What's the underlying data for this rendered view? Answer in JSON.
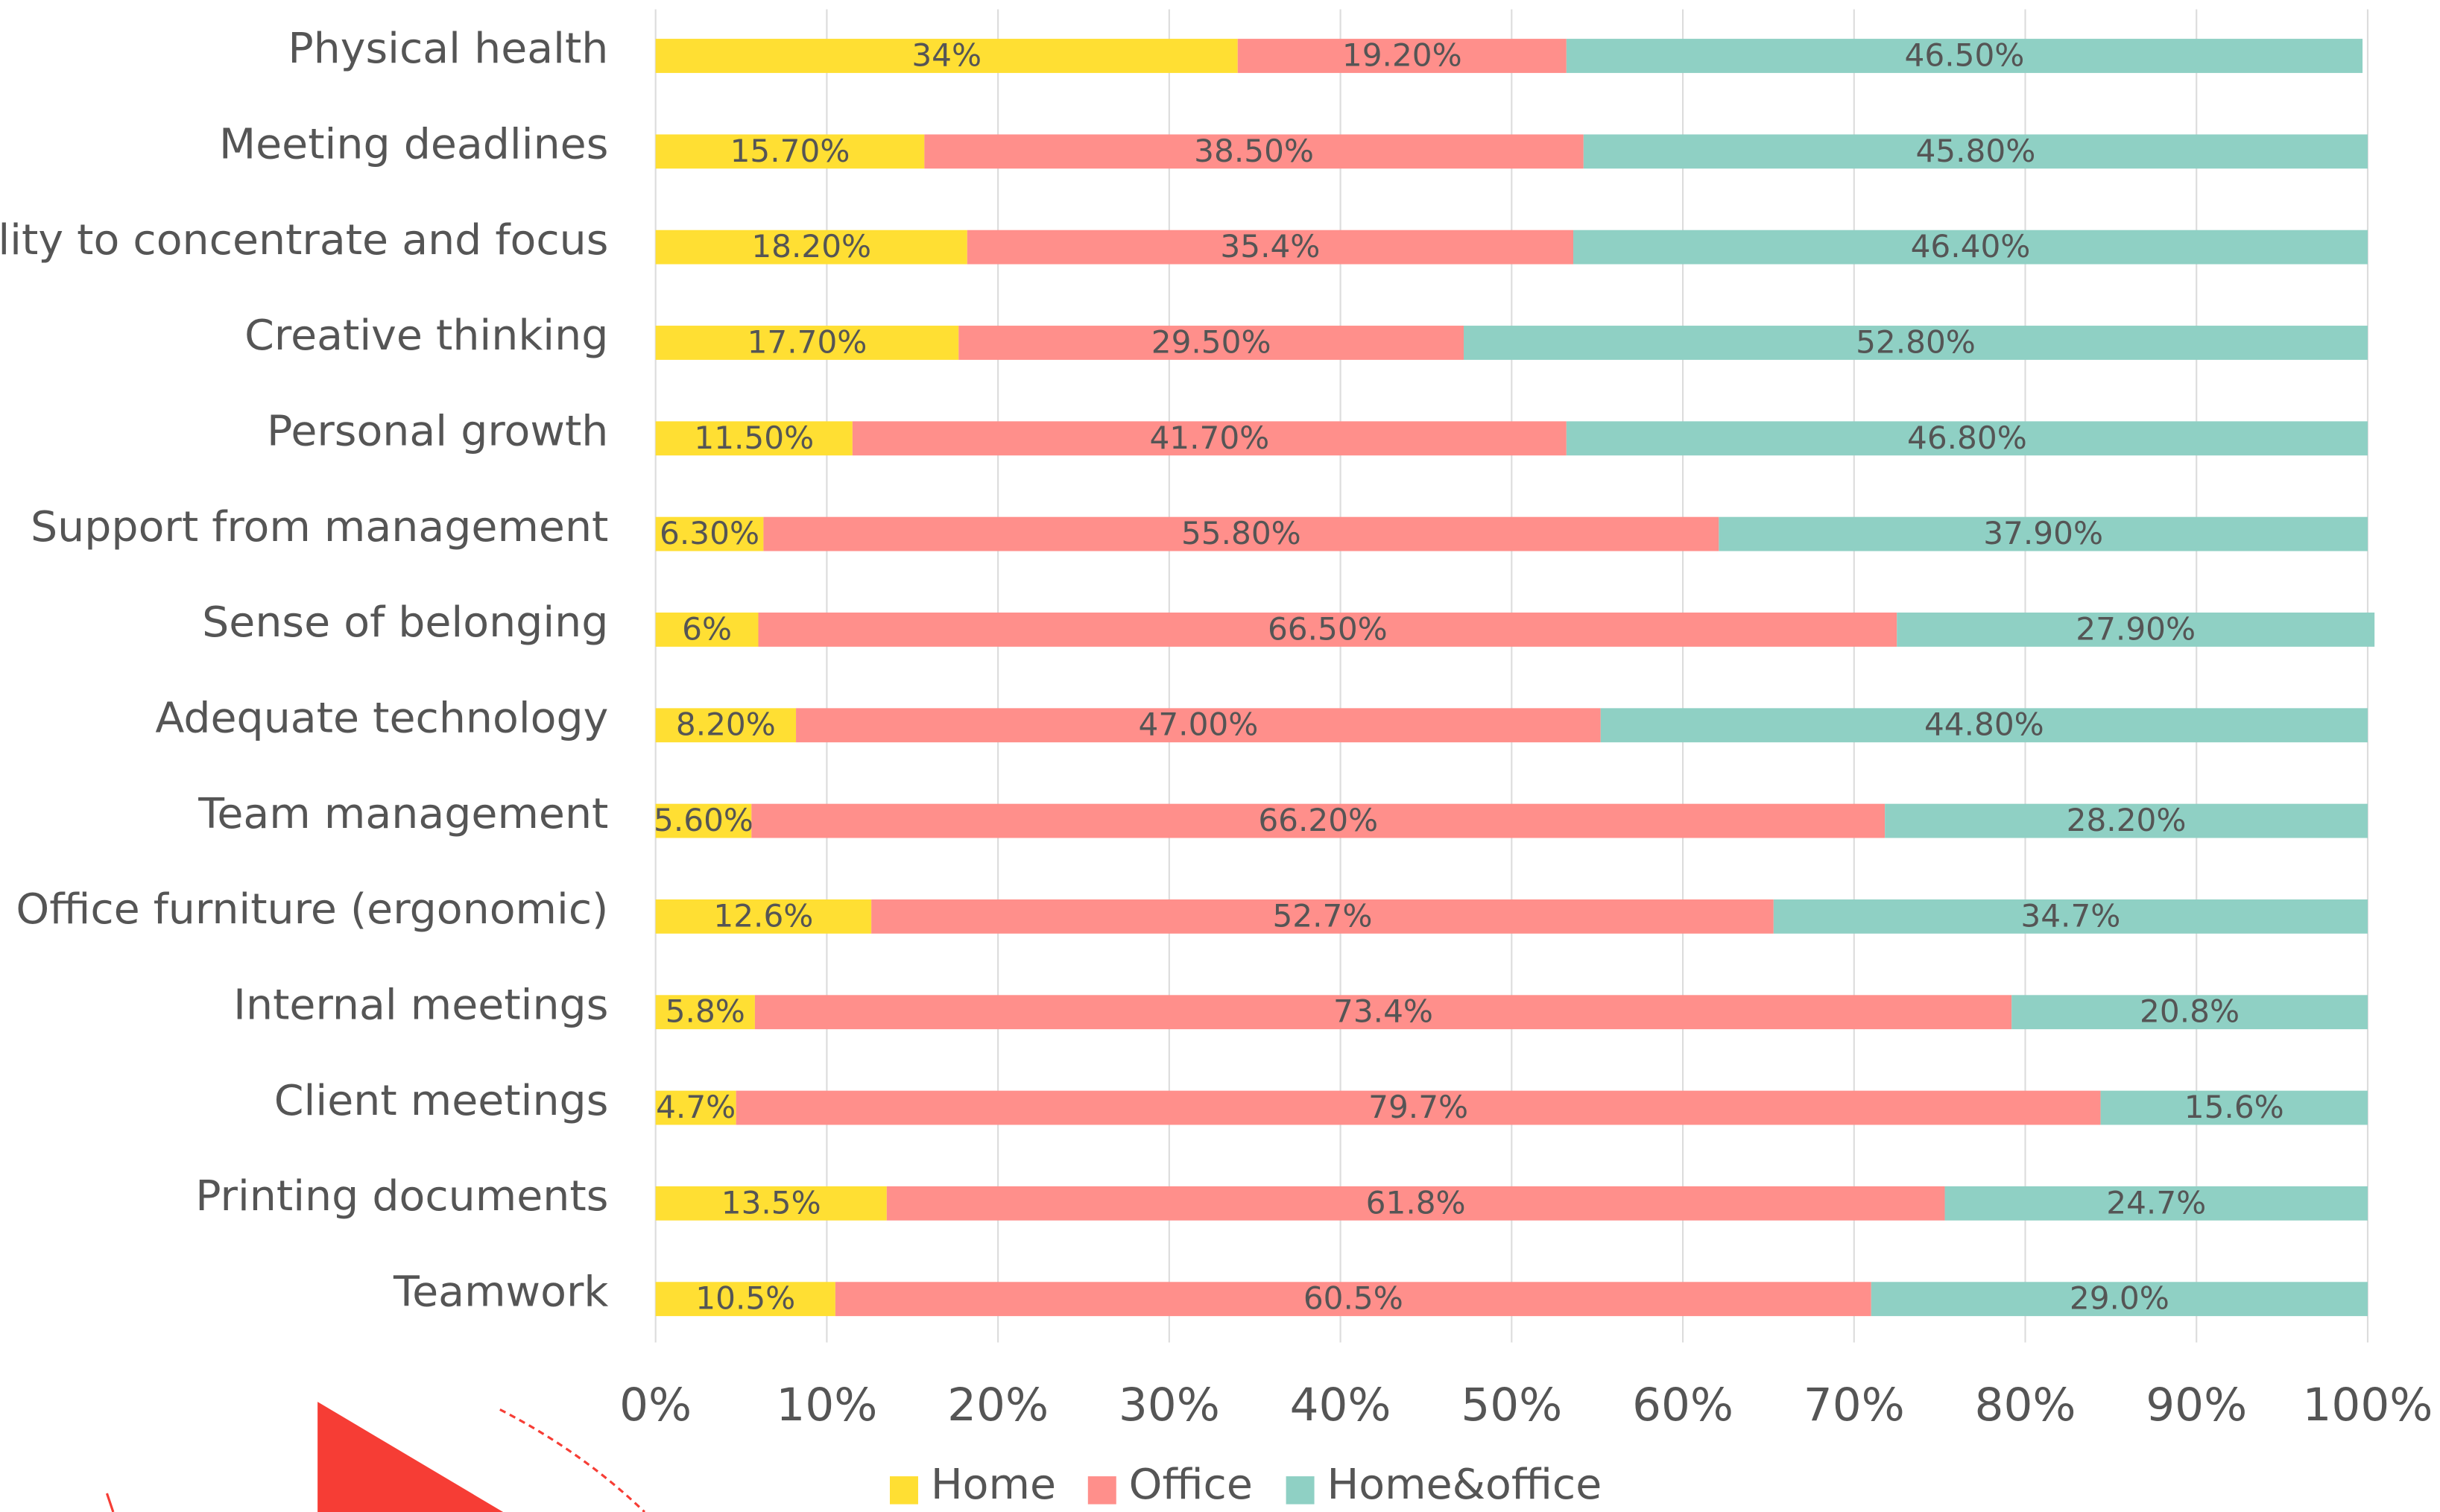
{
  "chart_data": {
    "type": "stacked-bar-horizontal",
    "categories": [
      "Physical health",
      "Meeting deadlines",
      "Ability to concentrate and focus",
      "Creative thinking",
      "Personal growth",
      "Support from management",
      "Sense of belonging",
      "Adequate technology",
      "Team management",
      "Office furniture (ergonomic)",
      "Internal meetings",
      "Client meetings",
      "Printing documents",
      "Teamwork"
    ],
    "series": [
      {
        "name": "Home",
        "color": "#FFDF33",
        "values": [
          34,
          15.7,
          18.2,
          17.7,
          11.5,
          6.3,
          6,
          8.2,
          5.6,
          12.6,
          5.8,
          4.7,
          13.5,
          10.5
        ],
        "value_labels": [
          "34%",
          "15.70%",
          "18.20%",
          "17.70%",
          "11.50%",
          "6.30%",
          "6%",
          "8.20%",
          "5.60%",
          "12.6%",
          "5.8%",
          "4.7%",
          "13.5%",
          "10.5%"
        ]
      },
      {
        "name": "Office",
        "color": "#FF8F8B",
        "values": [
          19.2,
          38.5,
          35.4,
          29.5,
          41.7,
          55.8,
          66.5,
          47.0,
          66.2,
          52.7,
          73.4,
          79.7,
          61.8,
          60.5
        ],
        "value_labels": [
          "19.20%",
          "38.50%",
          "35.4%",
          "29.50%",
          "41.70%",
          "55.80%",
          "66.50%",
          "47.00%",
          "66.20%",
          "52.7%",
          "73.4%",
          "79.7%",
          "61.8%",
          "60.5%"
        ]
      },
      {
        "name": "Home&office",
        "color": "#8FD0C4",
        "values": [
          46.5,
          45.8,
          46.4,
          52.8,
          46.8,
          37.9,
          27.9,
          44.8,
          28.2,
          34.7,
          20.8,
          15.6,
          24.7,
          29.0
        ],
        "value_labels": [
          "46.50%",
          "45.80%",
          "46.40%",
          "52.80%",
          "46.80%",
          "37.90%",
          "27.90%",
          "44.80%",
          "28.20%",
          "34.7%",
          "20.8%",
          "15.6%",
          "24.7%",
          "29.0%"
        ]
      }
    ],
    "xlim": [
      0,
      100
    ],
    "xticks": [
      {
        "value": 0,
        "label": "0%"
      },
      {
        "value": 10,
        "label": "10%"
      },
      {
        "value": 20,
        "label": "20%"
      },
      {
        "value": 30,
        "label": "30%"
      },
      {
        "value": 40,
        "label": "40%"
      },
      {
        "value": 50,
        "label": "50%"
      },
      {
        "value": 60,
        "label": "60%"
      },
      {
        "value": 70,
        "label": "70%"
      },
      {
        "value": 80,
        "label": "80%"
      },
      {
        "value": 90,
        "label": "90%"
      },
      {
        "value": 100,
        "label": "100%"
      }
    ],
    "grid": true,
    "legend": "bottom"
  }
}
